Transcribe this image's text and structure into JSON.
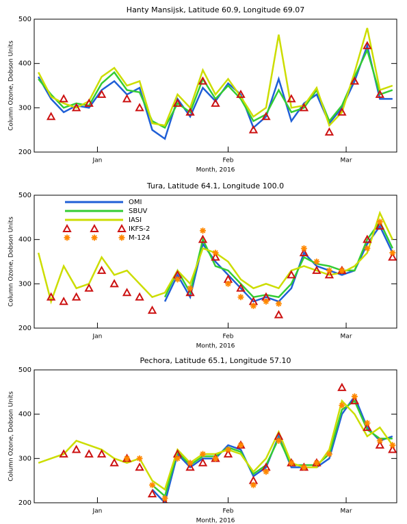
{
  "chart_data": [
    {
      "type": "line",
      "title": "Hanty Mansijsk, Latitude 60.9, Longitude 69.07",
      "x_label": "Month, 2016",
      "y_label": "Column Ozone, Dobson Units",
      "x": [
        1,
        4,
        7,
        10,
        13,
        16,
        19,
        22,
        25,
        28,
        31,
        34,
        37,
        40,
        43,
        46,
        49,
        52,
        55,
        58,
        61,
        64,
        67,
        70,
        73,
        76,
        79,
        82,
        85
      ],
      "xlim": [
        0,
        86
      ],
      "xticks": [
        {
          "value": 15,
          "label": "Jan"
        },
        {
          "value": 46,
          "label": "Feb"
        },
        {
          "value": 74,
          "label": "Mar"
        }
      ],
      "ylim": [
        200,
        500
      ],
      "yticks": [
        200,
        300,
        400,
        500
      ],
      "legend": false,
      "series": [
        {
          "name": "OMI",
          "color": "#1f5fd6",
          "marker": "line",
          "values": [
            370,
            320,
            290,
            305,
            300,
            340,
            360,
            330,
            345,
            250,
            230,
            320,
            280,
            345,
            315,
            355,
            330,
            255,
            280,
            365,
            270,
            310,
            330,
            265,
            300,
            360,
            440,
            320,
            320
          ]
        },
        {
          "name": "SBUV",
          "color": "#33cc33",
          "marker": "line",
          "values": [
            365,
            330,
            300,
            310,
            305,
            355,
            380,
            340,
            335,
            270,
            255,
            310,
            290,
            365,
            320,
            350,
            320,
            270,
            285,
            340,
            290,
            300,
            340,
            270,
            305,
            370,
            430,
            330,
            340
          ]
        },
        {
          "name": "IASI",
          "color": "#ccdd00",
          "marker": "line",
          "values": [
            380,
            325,
            310,
            300,
            315,
            370,
            390,
            350,
            360,
            265,
            260,
            330,
            300,
            385,
            330,
            365,
            325,
            280,
            300,
            465,
            300,
            305,
            345,
            260,
            290,
            380,
            480,
            340,
            350
          ]
        },
        {
          "name": "IKFS-2",
          "color": "#cc1111",
          "marker": "triangle",
          "values": [
            null,
            280,
            320,
            300,
            310,
            330,
            null,
            320,
            300,
            null,
            null,
            310,
            290,
            360,
            310,
            null,
            330,
            250,
            280,
            null,
            320,
            300,
            null,
            245,
            290,
            360,
            440,
            330,
            null
          ]
        }
      ]
    },
    {
      "type": "line",
      "title": "Tura, Latitude 64.1, Longitude 100.0",
      "x_label": "Month, 2016",
      "y_label": "Column Ozone, Dobson Units",
      "x": [
        1,
        4,
        7,
        10,
        13,
        16,
        19,
        22,
        25,
        28,
        31,
        34,
        37,
        40,
        43,
        46,
        49,
        52,
        55,
        58,
        61,
        64,
        67,
        70,
        73,
        76,
        79,
        82,
        85
      ],
      "xlim": [
        0,
        86
      ],
      "xticks": [
        {
          "value": 15,
          "label": "Jan"
        },
        {
          "value": 46,
          "label": "Feb"
        },
        {
          "value": 74,
          "label": "Mar"
        }
      ],
      "ylim": [
        200,
        500
      ],
      "yticks": [
        200,
        300,
        400,
        500
      ],
      "legend": "upper left",
      "series": [
        {
          "name": "OMI",
          "color": "#1f5fd6",
          "marker": "line",
          "values": [
            null,
            null,
            null,
            null,
            null,
            null,
            null,
            null,
            null,
            null,
            260,
            320,
            270,
            390,
            350,
            320,
            290,
            260,
            270,
            260,
            290,
            370,
            340,
            330,
            320,
            330,
            390,
            430,
            370
          ]
        },
        {
          "name": "SBUV",
          "color": "#33cc33",
          "marker": "line",
          "values": [
            null,
            null,
            null,
            null,
            null,
            null,
            null,
            null,
            null,
            null,
            270,
            330,
            280,
            400,
            340,
            330,
            300,
            270,
            275,
            270,
            300,
            360,
            345,
            340,
            330,
            330,
            400,
            440,
            380
          ]
        },
        {
          "name": "IASI",
          "color": "#ccdd00",
          "marker": "line",
          "values": [
            370,
            260,
            340,
            290,
            300,
            360,
            320,
            330,
            300,
            270,
            280,
            330,
            300,
            380,
            370,
            350,
            310,
            290,
            300,
            290,
            330,
            340,
            330,
            320,
            325,
            340,
            370,
            460,
            400
          ]
        },
        {
          "name": "IKFS-2",
          "color": "#cc1111",
          "marker": "triangle",
          "values": [
            null,
            270,
            260,
            270,
            290,
            330,
            300,
            280,
            270,
            240,
            null,
            320,
            280,
            400,
            360,
            310,
            290,
            260,
            270,
            230,
            320,
            370,
            330,
            320,
            330,
            null,
            400,
            430,
            360
          ]
        },
        {
          "name": "M-124",
          "color": "#ff8800",
          "marker": "asterisk",
          "values": [
            null,
            null,
            null,
            null,
            null,
            null,
            null,
            null,
            null,
            null,
            null,
            310,
            290,
            420,
            370,
            300,
            270,
            250,
            260,
            255,
            null,
            380,
            350,
            330,
            330,
            null,
            380,
            440,
            370
          ]
        }
      ]
    },
    {
      "type": "line",
      "title": "Pechora, Latitude 65.1, Longitude 57.10",
      "x_label": "Month, 2016",
      "y_label": "Column Ozone, Dobson Units",
      "x": [
        1,
        4,
        7,
        10,
        13,
        16,
        19,
        22,
        25,
        28,
        31,
        34,
        37,
        40,
        43,
        46,
        49,
        52,
        55,
        58,
        61,
        64,
        67,
        70,
        73,
        76,
        79,
        82,
        85
      ],
      "xlim": [
        0,
        86
      ],
      "xticks": [
        {
          "value": 15,
          "label": "Jan"
        },
        {
          "value": 46,
          "label": "Feb"
        },
        {
          "value": 74,
          "label": "Mar"
        }
      ],
      "ylim": [
        200,
        500
      ],
      "yticks": [
        200,
        300,
        400,
        500
      ],
      "legend": false,
      "series": [
        {
          "name": "OMI",
          "color": "#1f5fd6",
          "marker": "line",
          "values": [
            null,
            null,
            null,
            null,
            null,
            null,
            null,
            null,
            null,
            230,
            200,
            310,
            280,
            300,
            300,
            330,
            320,
            260,
            280,
            350,
            280,
            280,
            280,
            300,
            400,
            440,
            370,
            340,
            350
          ]
        },
        {
          "name": "SBUV",
          "color": "#33cc33",
          "marker": "line",
          "values": [
            null,
            null,
            null,
            null,
            null,
            null,
            null,
            null,
            null,
            240,
            215,
            315,
            285,
            305,
            305,
            325,
            315,
            265,
            285,
            345,
            285,
            285,
            285,
            310,
            410,
            430,
            365,
            345,
            345
          ]
        },
        {
          "name": "IASI",
          "color": "#ccdd00",
          "marker": "line",
          "values": [
            290,
            300,
            310,
            340,
            330,
            320,
            300,
            290,
            300,
            250,
            230,
            320,
            290,
            310,
            310,
            320,
            310,
            270,
            300,
            360,
            290,
            280,
            280,
            320,
            430,
            400,
            350,
            370,
            330
          ]
        },
        {
          "name": "IKFS-2",
          "color": "#cc1111",
          "marker": "triangle",
          "values": [
            null,
            null,
            310,
            320,
            310,
            310,
            290,
            300,
            280,
            220,
            200,
            310,
            280,
            290,
            300,
            310,
            330,
            250,
            280,
            350,
            290,
            280,
            290,
            null,
            460,
            430,
            370,
            330,
            320
          ]
        },
        {
          "name": "M-124",
          "color": "#ff8800",
          "marker": "asterisk",
          "values": [
            null,
            null,
            null,
            null,
            null,
            null,
            null,
            300,
            300,
            240,
            210,
            300,
            290,
            310,
            300,
            320,
            330,
            240,
            270,
            340,
            290,
            280,
            290,
            310,
            420,
            440,
            380,
            340,
            330
          ]
        }
      ]
    }
  ]
}
